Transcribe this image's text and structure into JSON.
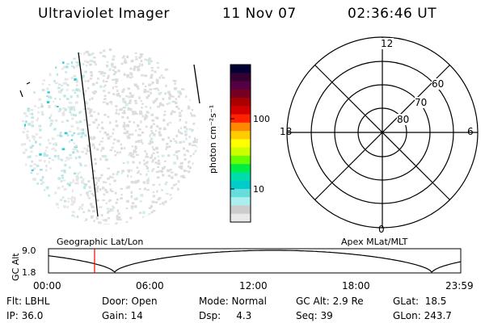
{
  "header": {
    "title": "Ultraviolet Imager",
    "date": "11 Nov 07",
    "time": "02:36:46 UT"
  },
  "colorbar": {
    "unit_label": "photon cm⁻²s⁻¹",
    "ticks": [
      "100",
      "10"
    ],
    "colors": [
      "#000033",
      "#330033",
      "#550044",
      "#770022",
      "#aa0000",
      "#d40000",
      "#ff2200",
      "#ff8800",
      "#ffcc00",
      "#ffff00",
      "#ccff00",
      "#66ff00",
      "#00ee44",
      "#00ddaa",
      "#00cccc",
      "#66dddd",
      "#aaeeee",
      "#cccccc",
      "#e8e8e8"
    ]
  },
  "polar_plot": {
    "mlt_labels": [
      "12",
      "18",
      "6",
      "0"
    ],
    "lat_labels": [
      "60",
      "70",
      "80"
    ]
  },
  "timeline": {
    "y_axis_label": "GC Alt",
    "y_ticks": [
      "9.0",
      "1.8"
    ],
    "left_label": "Geographic Lat/Lon",
    "right_label": "Apex MLat/MLT",
    "time_ticks": [
      "00:00",
      "06:00",
      "12:00",
      "18:00",
      "23:59"
    ],
    "marker_color": "#ff0000"
  },
  "info": {
    "row1": {
      "flt": "Flt: LBHL",
      "door": "Door: Open",
      "mode": "Mode: Normal",
      "gcalt": "GC Alt: 2.9 Re",
      "glat": "GLat:  18.5"
    },
    "row2": {
      "ip": "IP: 36.0",
      "gain": "Gain: 14",
      "dsp": "Dsp:     4.3",
      "seq": "Seq: 39",
      "glon": "GLon: 243.7"
    }
  }
}
